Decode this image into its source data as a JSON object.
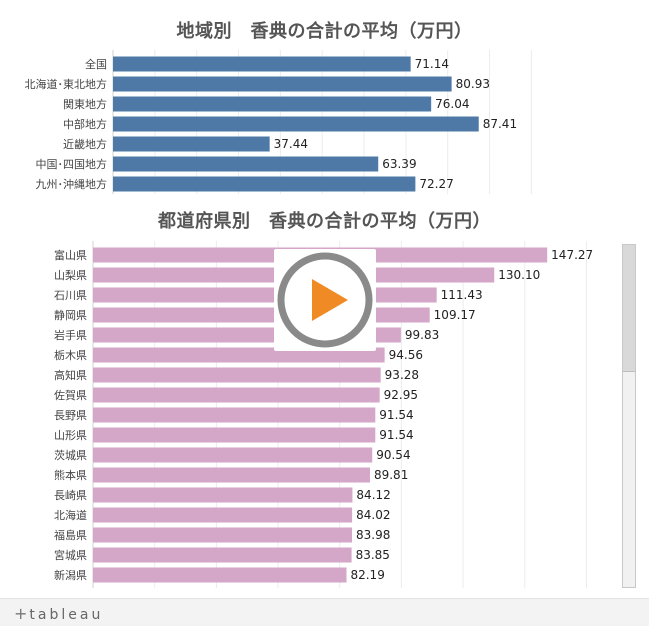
{
  "chart_data": [
    {
      "type": "bar",
      "orientation": "horizontal",
      "title": "地域別　香典の合計の平均（万円）",
      "categories": [
        "全国",
        "北海道･東北地方",
        "関東地方",
        "中部地方",
        "近畿地方",
        "中国･四国地方",
        "九州･沖縄地方"
      ],
      "values": [
        71.14,
        80.93,
        76.04,
        87.41,
        37.44,
        63.39,
        72.27
      ],
      "value_labels": [
        "71.14",
        "80.93",
        "76.04",
        "87.41",
        "37.44",
        "63.39",
        "72.27"
      ],
      "xlim": [
        0,
        100
      ],
      "grid": true,
      "color": "#4e79a7"
    },
    {
      "type": "bar",
      "orientation": "horizontal",
      "title": "都道府県別　香典の合計の平均（万円）",
      "categories": [
        "富山県",
        "山梨県",
        "石川県",
        "静岡県",
        "岩手県",
        "栃木県",
        "高知県",
        "佐賀県",
        "長野県",
        "山形県",
        "茨城県",
        "熊本県",
        "長崎県",
        "北海道",
        "福島県",
        "宮城県",
        "新潟県"
      ],
      "values": [
        147.27,
        130.1,
        111.43,
        109.17,
        99.83,
        94.56,
        93.28,
        92.95,
        91.54,
        91.54,
        90.54,
        89.81,
        84.12,
        84.02,
        83.98,
        83.85,
        82.19
      ],
      "value_labels": [
        "147.27",
        "130.10",
        "111.43",
        "109.17",
        "99.83",
        "94.56",
        "93.28",
        "92.95",
        "91.54",
        "91.54",
        "90.54",
        "89.81",
        "84.12",
        "84.02",
        "83.98",
        "83.85",
        "82.19"
      ],
      "xlim": [
        0,
        170
      ],
      "grid": true,
      "color": "#d4a6c8"
    }
  ],
  "colors": {
    "play_ring": "#8a8a8a",
    "play_triangle": "#f08a24"
  },
  "footer": {
    "logo_plus": "+",
    "logo_text": "tableau"
  }
}
